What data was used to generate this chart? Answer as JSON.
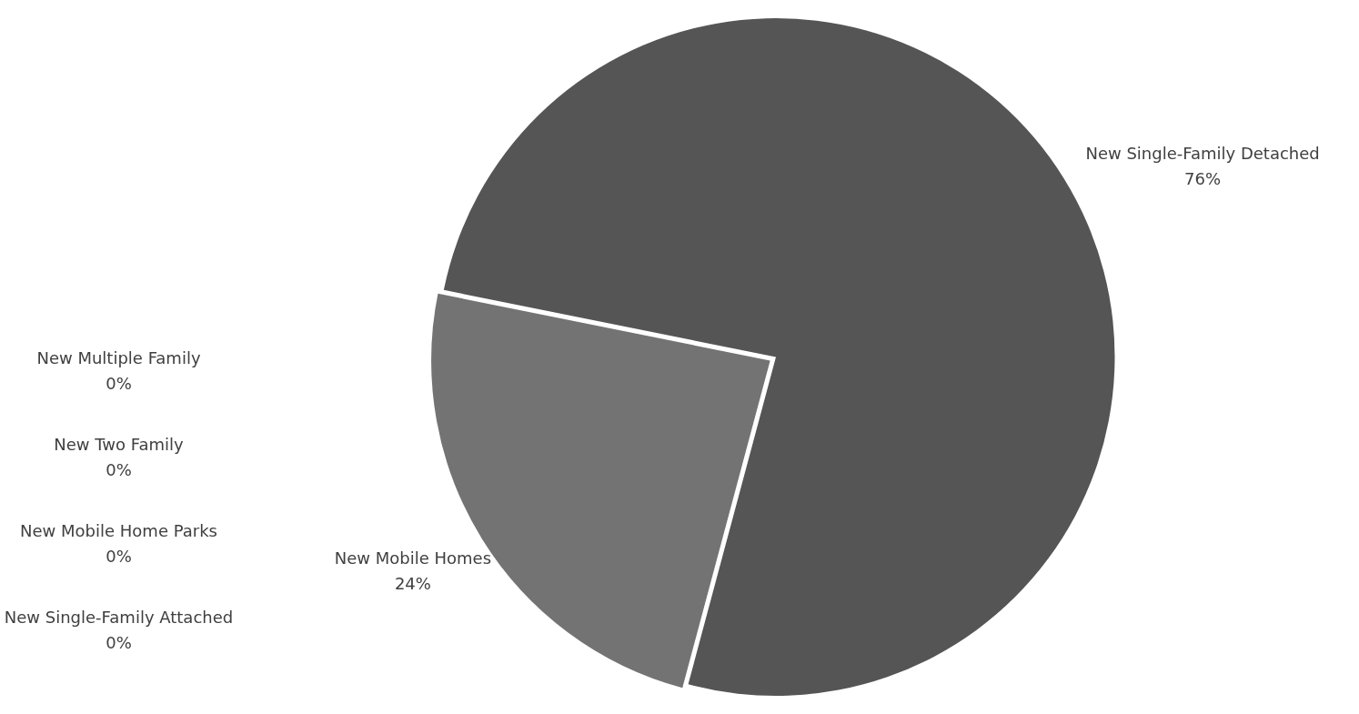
{
  "chart_data": {
    "type": "pie",
    "categories": [
      "New Mobile Homes",
      "New Single-Family Attached",
      "New Mobile Home Parks",
      "New Two Family",
      "New Multiple Family",
      "New Single-Family Detached"
    ],
    "values": [
      24,
      0,
      0,
      0,
      0,
      76
    ],
    "colors": [
      "#737373",
      "#a5a5a5",
      "#636363",
      "#999999",
      "#4f4f4f",
      "#555555"
    ],
    "value_labels": [
      "24%",
      "0%",
      "0%",
      "0%",
      "0%",
      "76%"
    ],
    "legend": false
  }
}
